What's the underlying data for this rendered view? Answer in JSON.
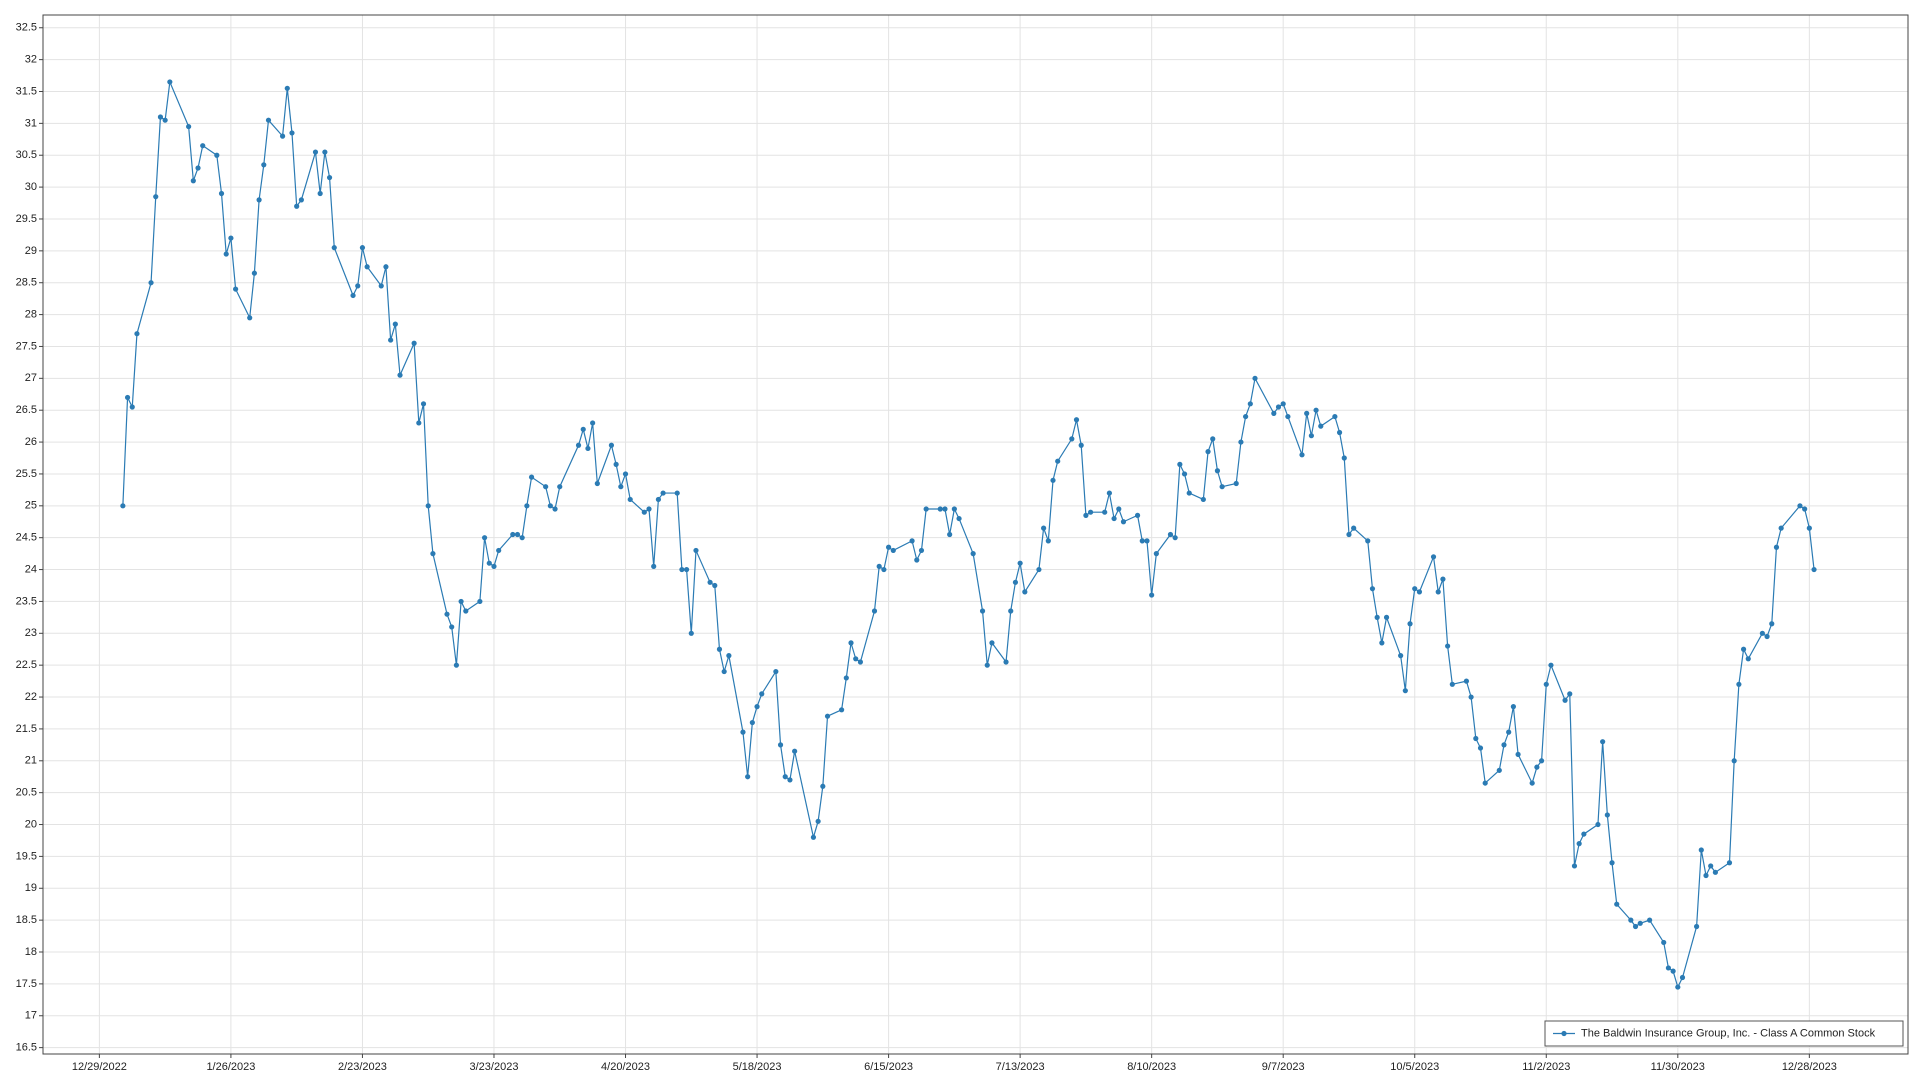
{
  "chart_data": {
    "type": "line",
    "x": [
      "2023-01-03",
      "2023-01-04",
      "2023-01-05",
      "2023-01-06",
      "2023-01-09",
      "2023-01-10",
      "2023-01-11",
      "2023-01-12",
      "2023-01-13",
      "2023-01-17",
      "2023-01-18",
      "2023-01-19",
      "2023-01-20",
      "2023-01-23",
      "2023-01-24",
      "2023-01-25",
      "2023-01-26",
      "2023-01-27",
      "2023-01-30",
      "2023-01-31",
      "2023-02-01",
      "2023-02-02",
      "2023-02-03",
      "2023-02-06",
      "2023-02-07",
      "2023-02-08",
      "2023-02-09",
      "2023-02-10",
      "2023-02-13",
      "2023-02-14",
      "2023-02-15",
      "2023-02-16",
      "2023-02-17",
      "2023-02-21",
      "2023-02-22",
      "2023-02-23",
      "2023-02-24",
      "2023-02-27",
      "2023-02-28",
      "2023-03-01",
      "2023-03-02",
      "2023-03-03",
      "2023-03-06",
      "2023-03-07",
      "2023-03-08",
      "2023-03-09",
      "2023-03-10",
      "2023-03-13",
      "2023-03-14",
      "2023-03-15",
      "2023-03-16",
      "2023-03-17",
      "2023-03-20",
      "2023-03-21",
      "2023-03-22",
      "2023-03-23",
      "2023-03-24",
      "2023-03-27",
      "2023-03-28",
      "2023-03-29",
      "2023-03-30",
      "2023-03-31",
      "2023-04-03",
      "2023-04-04",
      "2023-04-05",
      "2023-04-06",
      "2023-04-10",
      "2023-04-11",
      "2023-04-12",
      "2023-04-13",
      "2023-04-14",
      "2023-04-17",
      "2023-04-18",
      "2023-04-19",
      "2023-04-20",
      "2023-04-21",
      "2023-04-24",
      "2023-04-25",
      "2023-04-26",
      "2023-04-27",
      "2023-04-28",
      "2023-05-01",
      "2023-05-02",
      "2023-05-03",
      "2023-05-04",
      "2023-05-05",
      "2023-05-08",
      "2023-05-09",
      "2023-05-10",
      "2023-05-11",
      "2023-05-12",
      "2023-05-15",
      "2023-05-16",
      "2023-05-17",
      "2023-05-18",
      "2023-05-19",
      "2023-05-22",
      "2023-05-23",
      "2023-05-24",
      "2023-05-25",
      "2023-05-26",
      "2023-05-30",
      "2023-05-31",
      "2023-06-01",
      "2023-06-02",
      "2023-06-05",
      "2023-06-06",
      "2023-06-07",
      "2023-06-08",
      "2023-06-09",
      "2023-06-12",
      "2023-06-13",
      "2023-06-14",
      "2023-06-15",
      "2023-06-16",
      "2023-06-20",
      "2023-06-21",
      "2023-06-22",
      "2023-06-23",
      "2023-06-26",
      "2023-06-27",
      "2023-06-28",
      "2023-06-29",
      "2023-06-30",
      "2023-07-03",
      "2023-07-05",
      "2023-07-06",
      "2023-07-07",
      "2023-07-10",
      "2023-07-11",
      "2023-07-12",
      "2023-07-13",
      "2023-07-14",
      "2023-07-17",
      "2023-07-18",
      "2023-07-19",
      "2023-07-20",
      "2023-07-21",
      "2023-07-24",
      "2023-07-25",
      "2023-07-26",
      "2023-07-27",
      "2023-07-28",
      "2023-07-31",
      "2023-08-01",
      "2023-08-02",
      "2023-08-03",
      "2023-08-04",
      "2023-08-07",
      "2023-08-08",
      "2023-08-09",
      "2023-08-10",
      "2023-08-11",
      "2023-08-14",
      "2023-08-15",
      "2023-08-16",
      "2023-08-17",
      "2023-08-18",
      "2023-08-21",
      "2023-08-22",
      "2023-08-23",
      "2023-08-24",
      "2023-08-25",
      "2023-08-28",
      "2023-08-29",
      "2023-08-30",
      "2023-08-31",
      "2023-09-01",
      "2023-09-05",
      "2023-09-06",
      "2023-09-07",
      "2023-09-08",
      "2023-09-11",
      "2023-09-12",
      "2023-09-13",
      "2023-09-14",
      "2023-09-15",
      "2023-09-18",
      "2023-09-19",
      "2023-09-20",
      "2023-09-21",
      "2023-09-22",
      "2023-09-25",
      "2023-09-26",
      "2023-09-27",
      "2023-09-28",
      "2023-09-29",
      "2023-10-02",
      "2023-10-03",
      "2023-10-04",
      "2023-10-05",
      "2023-10-06",
      "2023-10-09",
      "2023-10-10",
      "2023-10-11",
      "2023-10-12",
      "2023-10-13",
      "2023-10-16",
      "2023-10-17",
      "2023-10-18",
      "2023-10-19",
      "2023-10-20",
      "2023-10-23",
      "2023-10-24",
      "2023-10-25",
      "2023-10-26",
      "2023-10-27",
      "2023-10-30",
      "2023-10-31",
      "2023-11-01",
      "2023-11-02",
      "2023-11-03",
      "2023-11-06",
      "2023-11-07",
      "2023-11-08",
      "2023-11-09",
      "2023-11-10",
      "2023-11-13",
      "2023-11-14",
      "2023-11-15",
      "2023-11-16",
      "2023-11-17",
      "2023-11-20",
      "2023-11-21",
      "2023-11-22",
      "2023-11-24",
      "2023-11-27",
      "2023-11-28",
      "2023-11-29",
      "2023-11-30",
      "2023-12-01",
      "2023-12-04",
      "2023-12-05",
      "2023-12-06",
      "2023-12-07",
      "2023-12-08",
      "2023-12-11",
      "2023-12-12",
      "2023-12-13",
      "2023-12-14",
      "2023-12-15",
      "2023-12-18",
      "2023-12-19",
      "2023-12-20",
      "2023-12-21",
      "2023-12-22",
      "2023-12-26",
      "2023-12-27",
      "2023-12-28",
      "2023-12-29"
    ],
    "series": [
      {
        "name": "The Baldwin Insurance Group, Inc. - Class A Common Stock",
        "color": "#2b7bb4",
        "values": [
          25.0,
          26.7,
          26.55,
          27.7,
          28.5,
          29.85,
          31.1,
          31.05,
          31.65,
          30.95,
          30.1,
          30.3,
          30.65,
          30.5,
          29.9,
          28.95,
          29.2,
          28.4,
          27.95,
          28.65,
          29.8,
          30.35,
          31.05,
          30.8,
          31.55,
          30.85,
          29.7,
          29.8,
          30.55,
          29.9,
          30.55,
          30.15,
          29.05,
          28.3,
          28.45,
          29.05,
          28.75,
          28.45,
          28.75,
          27.6,
          27.85,
          27.05,
          27.55,
          26.3,
          26.6,
          25.0,
          24.25,
          23.3,
          23.1,
          22.5,
          23.5,
          23.35,
          23.5,
          24.5,
          24.1,
          24.05,
          24.3,
          24.55,
          24.55,
          24.5,
          25.0,
          25.45,
          25.3,
          25.0,
          24.95,
          25.3,
          25.95,
          26.2,
          25.9,
          26.3,
          25.35,
          25.95,
          25.65,
          25.3,
          25.5,
          25.1,
          24.9,
          24.95,
          24.05,
          25.1,
          25.2,
          25.2,
          24.0,
          24.0,
          23.0,
          24.3,
          23.8,
          23.75,
          22.75,
          22.4,
          22.65,
          21.45,
          20.75,
          21.6,
          21.85,
          22.05,
          22.4,
          21.25,
          20.75,
          20.7,
          21.15,
          19.8,
          20.05,
          20.6,
          21.7,
          21.8,
          22.3,
          22.85,
          22.6,
          22.55,
          23.35,
          24.05,
          24.0,
          24.35,
          24.3,
          24.45,
          24.15,
          24.3,
          24.95,
          24.95,
          24.95,
          24.55,
          24.95,
          24.8,
          24.25,
          23.35,
          22.5,
          22.85,
          22.55,
          23.35,
          23.8,
          24.1,
          23.65,
          24.0,
          24.65,
          24.45,
          25.4,
          25.7,
          26.05,
          26.35,
          25.95,
          24.85,
          24.9,
          24.9,
          25.2,
          24.8,
          24.95,
          24.75,
          24.85,
          24.45,
          24.45,
          23.6,
          24.25,
          24.55,
          24.5,
          25.65,
          25.5,
          25.2,
          25.1,
          25.85,
          26.05,
          25.55,
          25.3,
          25.35,
          26.0,
          26.4,
          26.6,
          27.0,
          26.45,
          26.55,
          26.6,
          26.4,
          25.8,
          26.45,
          26.1,
          26.5,
          26.25,
          26.4,
          26.15,
          25.75,
          24.55,
          24.65,
          24.45,
          23.7,
          23.25,
          22.85,
          23.25,
          22.65,
          22.1,
          23.15,
          23.7,
          23.65,
          24.2,
          23.65,
          23.85,
          22.8,
          22.2,
          22.25,
          22.0,
          21.35,
          21.2,
          20.65,
          20.85,
          21.25,
          21.45,
          21.85,
          21.1,
          20.65,
          20.9,
          21.0,
          22.2,
          22.5,
          21.95,
          22.05,
          19.35,
          19.7,
          19.85,
          20.0,
          21.3,
          20.15,
          19.4,
          18.75,
          18.5,
          18.4,
          18.45,
          18.5,
          18.15,
          17.75,
          17.7,
          17.45,
          17.6,
          18.4,
          19.6,
          19.2,
          19.35,
          19.25,
          19.4,
          21.0,
          22.2,
          22.75,
          22.6,
          23.0,
          22.95,
          23.15,
          24.35,
          24.65,
          25.0,
          24.95,
          24.65,
          24.0
        ]
      }
    ],
    "xlim": [
      "2022-12-17",
      "2024-01-18"
    ],
    "xticks": [
      {
        "value": "2022-12-29",
        "label": "12/29/2022"
      },
      {
        "value": "2023-01-26",
        "label": "1/26/2023"
      },
      {
        "value": "2023-02-23",
        "label": "2/23/2023"
      },
      {
        "value": "2023-03-23",
        "label": "3/23/2023"
      },
      {
        "value": "2023-04-20",
        "label": "4/20/2023"
      },
      {
        "value": "2023-05-18",
        "label": "5/18/2023"
      },
      {
        "value": "2023-06-15",
        "label": "6/15/2023"
      },
      {
        "value": "2023-07-13",
        "label": "7/13/2023"
      },
      {
        "value": "2023-08-10",
        "label": "8/10/2023"
      },
      {
        "value": "2023-09-07",
        "label": "9/7/2023"
      },
      {
        "value": "2023-10-05",
        "label": "10/5/2023"
      },
      {
        "value": "2023-11-02",
        "label": "11/2/2023"
      },
      {
        "value": "2023-11-30",
        "label": "11/30/2023"
      },
      {
        "value": "2023-12-28",
        "label": "12/28/2023"
      }
    ],
    "ylim": [
      16.4,
      32.7
    ],
    "yticks": [
      16.5,
      17,
      17.5,
      18,
      18.5,
      19,
      19.5,
      20,
      20.5,
      21,
      21.5,
      22,
      22.5,
      23,
      23.5,
      24,
      24.5,
      25,
      25.5,
      26,
      26.5,
      27,
      27.5,
      28,
      28.5,
      29,
      29.5,
      30,
      30.5,
      31,
      31.5,
      32,
      32.5
    ],
    "grid": true,
    "legend": "lower right"
  }
}
